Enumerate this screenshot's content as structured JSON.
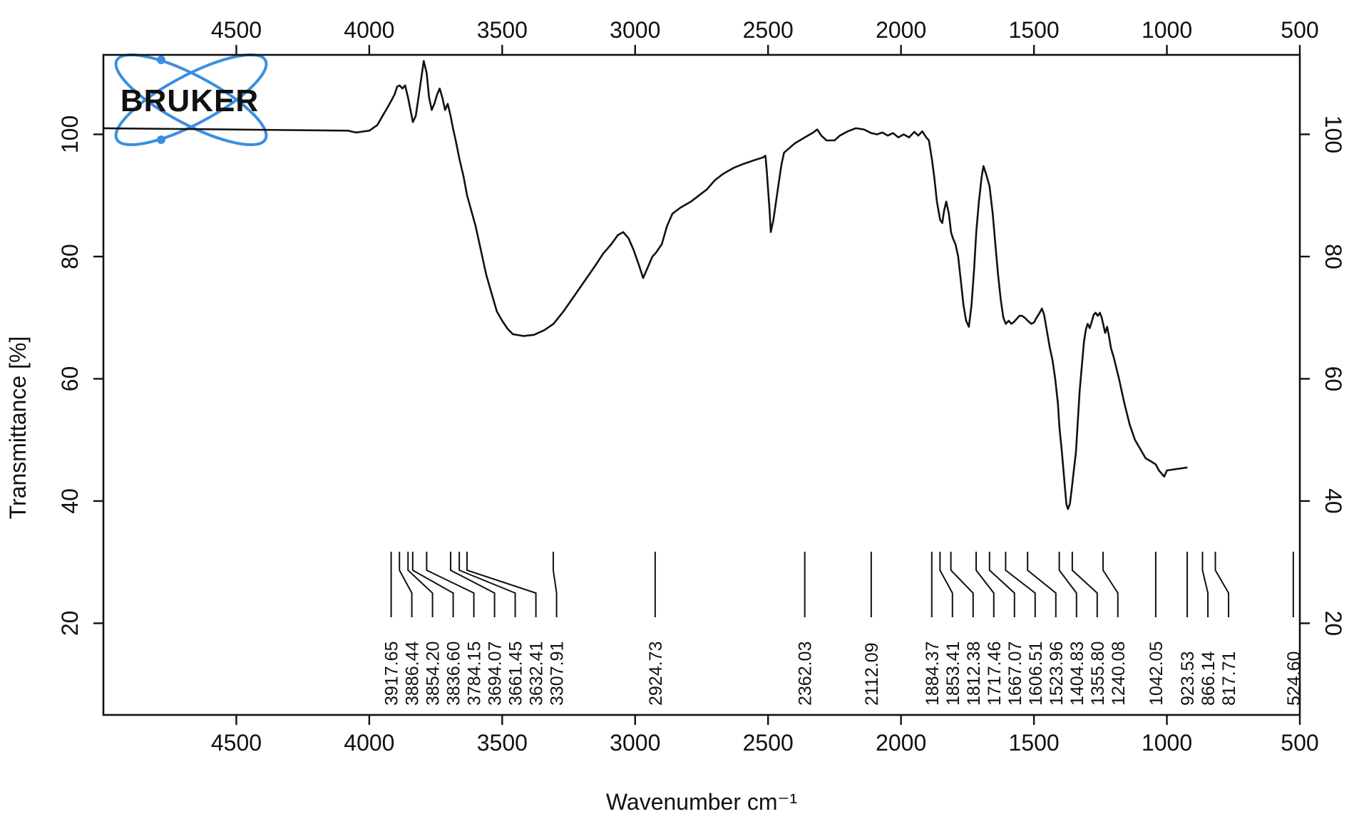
{
  "chart_data": {
    "type": "line",
    "title": "",
    "xlabel": "Wavenumber cm⁻¹",
    "ylabel": "Transmittance [%]",
    "xlim": [
      5000,
      500
    ],
    "ylim": [
      5,
      113
    ],
    "x_ticks": [
      "4500",
      "4000",
      "3500",
      "3000",
      "2500",
      "2000",
      "1500",
      "1000",
      "500"
    ],
    "x_tick_values": [
      4500,
      4000,
      3500,
      3000,
      2500,
      2000,
      1500,
      1000,
      500
    ],
    "y_ticks": [
      "20",
      "40",
      "60",
      "80",
      "100"
    ],
    "y_tick_values": [
      20,
      40,
      60,
      80,
      100
    ],
    "grid": false,
    "logo": {
      "text": "BRUKER",
      "color": "#3a8fe0"
    },
    "series": [
      {
        "line_color": "#111111",
        "points": [
          [
            5000,
            101
          ],
          [
            4080,
            100.6
          ],
          [
            4050,
            100.3
          ],
          [
            4000,
            100.6
          ],
          [
            3970,
            101.5
          ],
          [
            3950,
            103
          ],
          [
            3930,
            104.5
          ],
          [
            3917,
            105.5
          ],
          [
            3905,
            106.5
          ],
          [
            3895,
            107.8
          ],
          [
            3886,
            108
          ],
          [
            3875,
            107.5
          ],
          [
            3865,
            108
          ],
          [
            3854,
            106
          ],
          [
            3845,
            104
          ],
          [
            3836,
            102
          ],
          [
            3825,
            103
          ],
          [
            3815,
            106
          ],
          [
            3805,
            109
          ],
          [
            3795,
            112
          ],
          [
            3784,
            110
          ],
          [
            3775,
            106
          ],
          [
            3765,
            104
          ],
          [
            3755,
            105
          ],
          [
            3745,
            106.5
          ],
          [
            3735,
            107.5
          ],
          [
            3725,
            106
          ],
          [
            3715,
            104
          ],
          [
            3705,
            105
          ],
          [
            3694,
            103
          ],
          [
            3685,
            101
          ],
          [
            3675,
            99
          ],
          [
            3661,
            96
          ],
          [
            3645,
            93
          ],
          [
            3632,
            90
          ],
          [
            3600,
            85
          ],
          [
            3580,
            81
          ],
          [
            3560,
            77
          ],
          [
            3540,
            74
          ],
          [
            3520,
            71
          ],
          [
            3500,
            69.5
          ],
          [
            3480,
            68.2
          ],
          [
            3460,
            67.3
          ],
          [
            3420,
            67
          ],
          [
            3380,
            67.2
          ],
          [
            3340,
            68
          ],
          [
            3307,
            69
          ],
          [
            3270,
            71
          ],
          [
            3230,
            73.5
          ],
          [
            3190,
            76
          ],
          [
            3150,
            78.5
          ],
          [
            3120,
            80.5
          ],
          [
            3090,
            82
          ],
          [
            3065,
            83.5
          ],
          [
            3045,
            84
          ],
          [
            3025,
            83
          ],
          [
            3005,
            81
          ],
          [
            2985,
            78.5
          ],
          [
            2970,
            76.5
          ],
          [
            2955,
            78
          ],
          [
            2935,
            80
          ],
          [
            2924,
            80.5
          ],
          [
            2900,
            82
          ],
          [
            2880,
            85
          ],
          [
            2860,
            87
          ],
          [
            2830,
            88
          ],
          [
            2790,
            89
          ],
          [
            2760,
            90
          ],
          [
            2730,
            91
          ],
          [
            2700,
            92.5
          ],
          [
            2670,
            93.5
          ],
          [
            2630,
            94.5
          ],
          [
            2590,
            95.2
          ],
          [
            2550,
            95.8
          ],
          [
            2520,
            96.2
          ],
          [
            2510,
            96.5
          ],
          [
            2505,
            94
          ],
          [
            2500,
            91
          ],
          [
            2495,
            88
          ],
          [
            2490,
            84
          ],
          [
            2480,
            86
          ],
          [
            2470,
            89
          ],
          [
            2460,
            92
          ],
          [
            2450,
            95
          ],
          [
            2440,
            97
          ],
          [
            2400,
            98.5
          ],
          [
            2362,
            99.5
          ],
          [
            2330,
            100.3
          ],
          [
            2315,
            100.8
          ],
          [
            2300,
            99.8
          ],
          [
            2280,
            99
          ],
          [
            2250,
            99
          ],
          [
            2230,
            99.8
          ],
          [
            2200,
            100.5
          ],
          [
            2170,
            101
          ],
          [
            2140,
            100.8
          ],
          [
            2112,
            100.2
          ],
          [
            2090,
            100
          ],
          [
            2070,
            100.3
          ],
          [
            2050,
            99.8
          ],
          [
            2030,
            100.2
          ],
          [
            2010,
            99.5
          ],
          [
            1990,
            100
          ],
          [
            1970,
            99.5
          ],
          [
            1950,
            100.4
          ],
          [
            1935,
            99.8
          ],
          [
            1920,
            100.5
          ],
          [
            1905,
            99.5
          ],
          [
            1895,
            99
          ],
          [
            1884,
            96
          ],
          [
            1875,
            93
          ],
          [
            1865,
            89
          ],
          [
            1853,
            86
          ],
          [
            1845,
            85.5
          ],
          [
            1838,
            87.5
          ],
          [
            1830,
            89
          ],
          [
            1820,
            87
          ],
          [
            1812,
            84
          ],
          [
            1805,
            83
          ],
          [
            1795,
            82
          ],
          [
            1785,
            80
          ],
          [
            1775,
            76
          ],
          [
            1765,
            72
          ],
          [
            1755,
            69.5
          ],
          [
            1745,
            68.5
          ],
          [
            1735,
            72
          ],
          [
            1725,
            78
          ],
          [
            1717,
            84
          ],
          [
            1707,
            89
          ],
          [
            1697,
            93
          ],
          [
            1690,
            94.8
          ],
          [
            1680,
            93.5
          ],
          [
            1667,
            91.5
          ],
          [
            1655,
            87
          ],
          [
            1645,
            82
          ],
          [
            1635,
            77
          ],
          [
            1625,
            73
          ],
          [
            1615,
            70
          ],
          [
            1606,
            69
          ],
          [
            1595,
            69.5
          ],
          [
            1585,
            69
          ],
          [
            1575,
            69.3
          ],
          [
            1565,
            69.8
          ],
          [
            1555,
            70.3
          ],
          [
            1545,
            70.3
          ],
          [
            1535,
            70
          ],
          [
            1523,
            69.5
          ],
          [
            1510,
            69
          ],
          [
            1500,
            69.2
          ],
          [
            1490,
            70
          ],
          [
            1480,
            70.7
          ],
          [
            1470,
            71.5
          ],
          [
            1462,
            70.5
          ],
          [
            1452,
            68
          ],
          [
            1440,
            65
          ],
          [
            1430,
            63
          ],
          [
            1420,
            60
          ],
          [
            1410,
            56
          ],
          [
            1404,
            52
          ],
          [
            1395,
            48
          ],
          [
            1385,
            43
          ],
          [
            1378,
            39.5
          ],
          [
            1372,
            38.7
          ],
          [
            1365,
            39.5
          ],
          [
            1358,
            42
          ],
          [
            1350,
            45
          ],
          [
            1342,
            48
          ],
          [
            1335,
            53
          ],
          [
            1328,
            58
          ],
          [
            1320,
            62
          ],
          [
            1312,
            66
          ],
          [
            1305,
            68
          ],
          [
            1298,
            69
          ],
          [
            1290,
            68.3
          ],
          [
            1283,
            69.3
          ],
          [
            1275,
            70.5
          ],
          [
            1268,
            70.8
          ],
          [
            1260,
            70.3
          ],
          [
            1252,
            70.8
          ],
          [
            1245,
            70
          ],
          [
            1240,
            69
          ],
          [
            1232,
            67.5
          ],
          [
            1225,
            68.5
          ],
          [
            1218,
            67
          ],
          [
            1210,
            65
          ],
          [
            1200,
            63.5
          ],
          [
            1180,
            60
          ],
          [
            1160,
            56
          ],
          [
            1140,
            52.5
          ],
          [
            1120,
            50
          ],
          [
            1100,
            48.5
          ],
          [
            1080,
            47
          ],
          [
            1060,
            46.5
          ],
          [
            1042,
            46
          ],
          [
            1030,
            45
          ],
          [
            1020,
            44.5
          ],
          [
            1010,
            44
          ],
          [
            1000,
            45
          ],
          [
            923,
            45.5
          ]
        ]
      }
    ],
    "peaks": [
      {
        "x": 3917.65,
        "label": "3917.65"
      },
      {
        "x": 3886.44,
        "label": "3886.44"
      },
      {
        "x": 3854.2,
        "label": "3854.20"
      },
      {
        "x": 3836.6,
        "label": "3836.60"
      },
      {
        "x": 3784.15,
        "label": "3784.15"
      },
      {
        "x": 3694.07,
        "label": "3694.07"
      },
      {
        "x": 3661.45,
        "label": "3661.45"
      },
      {
        "x": 3632.41,
        "label": "3632.41"
      },
      {
        "x": 3307.91,
        "label": "3307.91"
      },
      {
        "x": 2924.73,
        "label": "2924.73"
      },
      {
        "x": 2362.03,
        "label": "2362.03"
      },
      {
        "x": 2112.09,
        "label": "2112.09"
      },
      {
        "x": 1884.37,
        "label": "1884.37"
      },
      {
        "x": 1853.41,
        "label": "1853.41"
      },
      {
        "x": 1812.38,
        "label": "1812.38"
      },
      {
        "x": 1717.46,
        "label": "1717.46"
      },
      {
        "x": 1667.07,
        "label": "1667.07"
      },
      {
        "x": 1606.51,
        "label": "1606.51"
      },
      {
        "x": 1523.96,
        "label": "1523.96"
      },
      {
        "x": 1404.83,
        "label": "1404.83"
      },
      {
        "x": 1355.8,
        "label": "1355.80"
      },
      {
        "x": 1240.08,
        "label": "1240.08"
      },
      {
        "x": 1042.05,
        "label": "1042.05"
      },
      {
        "x": 923.53,
        "label": "923.53"
      },
      {
        "x": 866.14,
        "label": "866.14"
      },
      {
        "x": 817.71,
        "label": "817.71"
      },
      {
        "x": 524.6,
        "label": "524.60"
      }
    ]
  }
}
